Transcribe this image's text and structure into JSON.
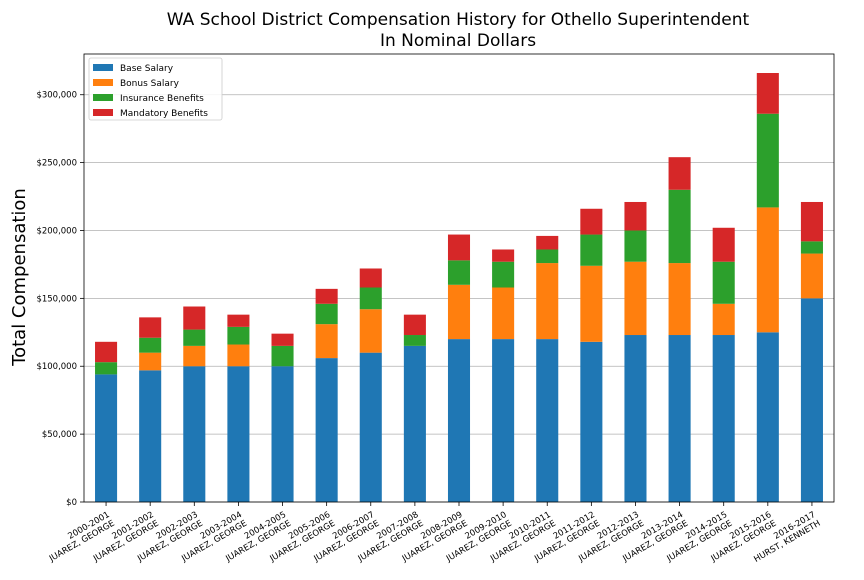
{
  "chart_data": {
    "type": "bar",
    "stacked": true,
    "title": "WA School District Compensation History for Othello Superintendent",
    "subtitle": "In Nominal Dollars",
    "xlabel": "",
    "ylabel": "Total Compensation",
    "ylim": [
      0,
      330000
    ],
    "yticks": [
      0,
      50000,
      100000,
      150000,
      200000,
      250000,
      300000
    ],
    "ytick_labels": [
      "$0",
      "$50,000",
      "$100,000",
      "$150,000",
      "$200,000",
      "$250,000",
      "$300,000"
    ],
    "grid": "horizontal",
    "legend_position": "top-left",
    "categories": [
      "2000-2001\nJUAREZ, GEORGE",
      "2001-2002\nJUAREZ, GEORGE",
      "2002-2003\nJUAREZ, GEORGE",
      "2003-2004\nJUAREZ, GEORGE",
      "2004-2005\nJUAREZ, GEORGE",
      "2005-2006\nJUAREZ, GEORGE",
      "2006-2007\nJUAREZ, GEORGE",
      "2007-2008\nJUAREZ, GEORGE",
      "2008-2009\nJUAREZ, GEORGE",
      "2009-2010\nJUAREZ, GEORGE",
      "2010-2011\nJUAREZ, GEORGE",
      "2011-2012\nJUAREZ, GEORGE",
      "2012-2013\nJUAREZ, GEORGE",
      "2013-2014\nJUAREZ, GEORGE",
      "2014-2015\nJUAREZ, GEORGE",
      "2015-2016\nJUAREZ, GEORGE",
      "2016-2017\nHURST, KENNETH"
    ],
    "series": [
      {
        "name": "Base Salary",
        "color": "#1f77b4",
        "values": [
          94000,
          97000,
          100000,
          100000,
          100000,
          106000,
          110000,
          115000,
          120000,
          120000,
          120000,
          118000,
          123000,
          123000,
          123000,
          125000,
          150000
        ]
      },
      {
        "name": "Bonus Salary",
        "color": "#ff7f0e",
        "values": [
          0,
          13000,
          15000,
          16000,
          0,
          25000,
          32000,
          0,
          40000,
          38000,
          56000,
          56000,
          54000,
          53000,
          23000,
          92000,
          33000
        ]
      },
      {
        "name": "Insurance Benefits",
        "color": "#2ca02c",
        "values": [
          9000,
          11000,
          12000,
          13000,
          15000,
          15000,
          16000,
          8000,
          18000,
          19000,
          10000,
          23000,
          23000,
          54000,
          31000,
          69000,
          9000
        ]
      },
      {
        "name": "Mandatory Benefits",
        "color": "#d62728",
        "values": [
          15000,
          15000,
          17000,
          9000,
          9000,
          11000,
          14000,
          15000,
          19000,
          9000,
          10000,
          19000,
          21000,
          24000,
          25000,
          30000,
          29000
        ]
      }
    ]
  }
}
